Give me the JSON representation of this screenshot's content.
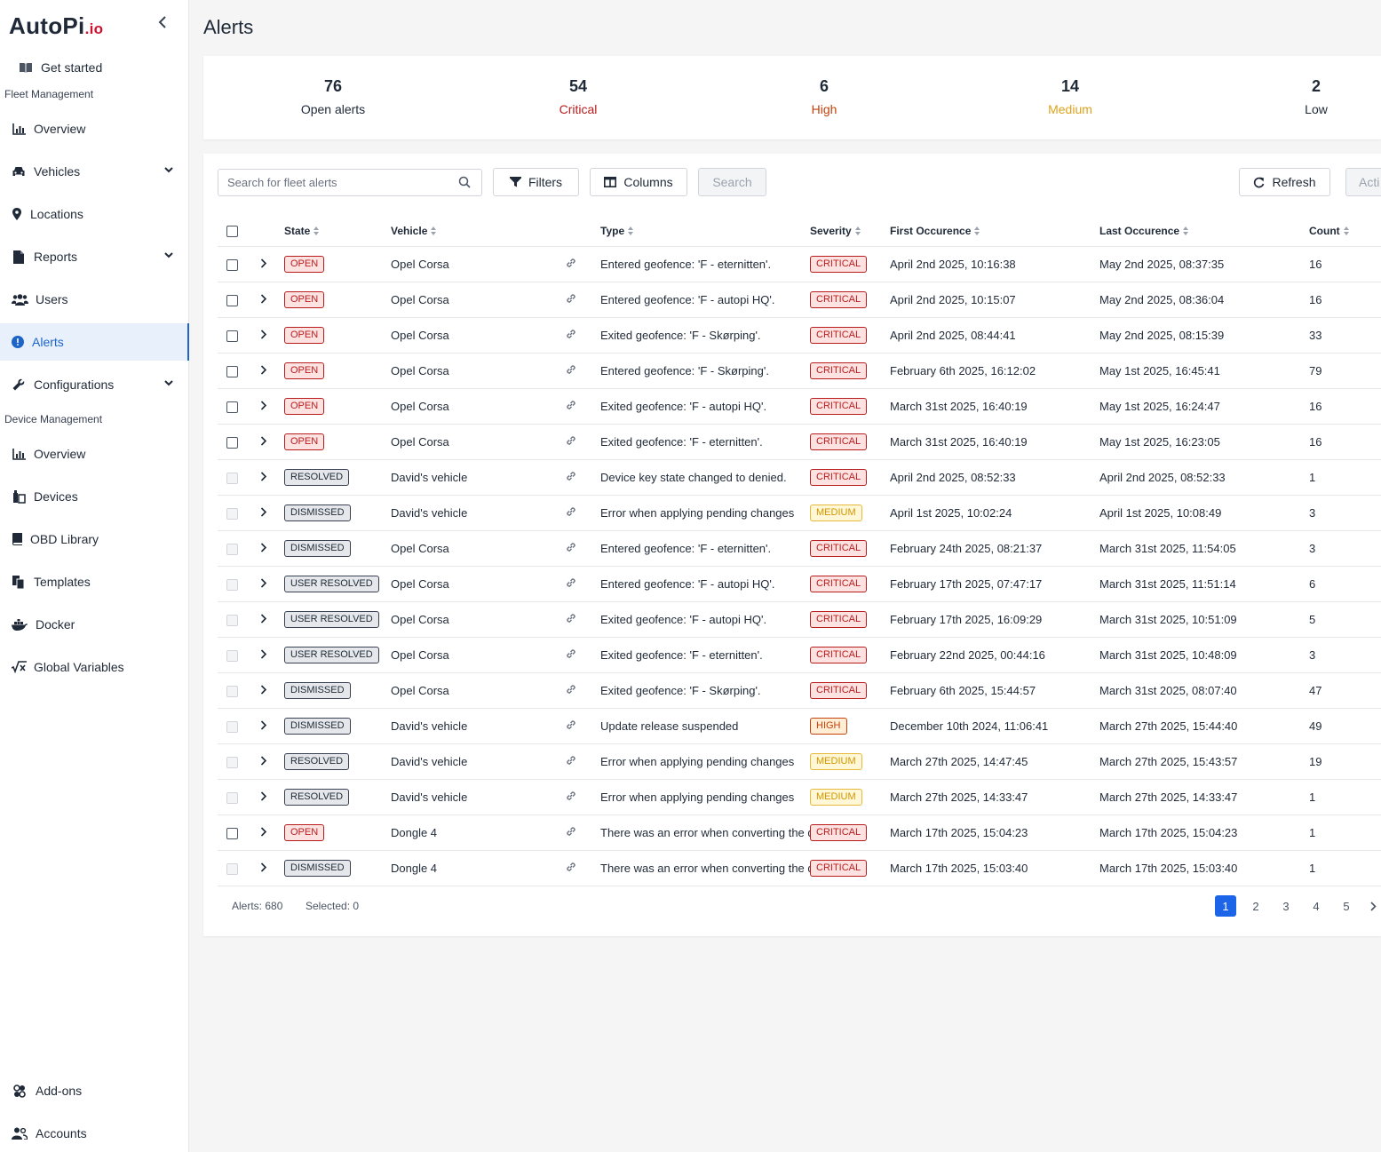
{
  "sidebar": {
    "logo": "AutoPi",
    "logo_suffix": ".io",
    "get_started": "Get started",
    "fleet_label": "Fleet Management",
    "device_label": "Device Management",
    "items": {
      "overview": "Overview",
      "vehicles": "Vehicles",
      "locations": "Locations",
      "reports": "Reports",
      "users": "Users",
      "alerts": "Alerts",
      "configurations": "Configurations",
      "dev_overview": "Overview",
      "devices": "Devices",
      "obd": "OBD Library",
      "templates": "Templates",
      "docker": "Docker",
      "global_vars": "Global Variables",
      "addons": "Add-ons",
      "accounts": "Accounts"
    }
  },
  "page": {
    "title": "Alerts"
  },
  "stats": [
    {
      "value": "76",
      "label": "Open alerts",
      "color": "#1f2937"
    },
    {
      "value": "54",
      "label": "Critical",
      "color": "#b91c1c"
    },
    {
      "value": "6",
      "label": "High",
      "color": "#c2410c"
    },
    {
      "value": "14",
      "label": "Medium",
      "color": "#e0a21b"
    },
    {
      "value": "2",
      "label": "Low",
      "color": "#1f2937"
    }
  ],
  "toolbar": {
    "search_placeholder": "Search for fleet alerts",
    "filters": "Filters",
    "columns": "Columns",
    "search": "Search",
    "refresh": "Refresh",
    "actions": "Acti"
  },
  "table": {
    "headers": {
      "state": "State",
      "vehicle": "Vehicle",
      "type": "Type",
      "severity": "Severity",
      "first": "First Occurence",
      "last": "Last Occurence",
      "count": "Count"
    },
    "rows": [
      {
        "state": "OPEN",
        "vehicle": "Opel Corsa",
        "type": "Entered geofence: 'F - eternitten'.",
        "severity": "CRITICAL",
        "first": "April 2nd 2025, 10:16:38",
        "last": "May 2nd 2025, 08:37:35",
        "count": "16"
      },
      {
        "state": "OPEN",
        "vehicle": "Opel Corsa",
        "type": "Entered geofence: 'F - autopi HQ'.",
        "severity": "CRITICAL",
        "first": "April 2nd 2025, 10:15:07",
        "last": "May 2nd 2025, 08:36:04",
        "count": "16"
      },
      {
        "state": "OPEN",
        "vehicle": "Opel Corsa",
        "type": "Exited geofence: 'F - Skørping'.",
        "severity": "CRITICAL",
        "first": "April 2nd 2025, 08:44:41",
        "last": "May 2nd 2025, 08:15:39",
        "count": "33"
      },
      {
        "state": "OPEN",
        "vehicle": "Opel Corsa",
        "type": "Entered geofence: 'F - Skørping'.",
        "severity": "CRITICAL",
        "first": "February 6th 2025, 16:12:02",
        "last": "May 1st 2025, 16:45:41",
        "count": "79"
      },
      {
        "state": "OPEN",
        "vehicle": "Opel Corsa",
        "type": "Exited geofence: 'F - autopi HQ'.",
        "severity": "CRITICAL",
        "first": "March 31st 2025, 16:40:19",
        "last": "May 1st 2025, 16:24:47",
        "count": "16"
      },
      {
        "state": "OPEN",
        "vehicle": "Opel Corsa",
        "type": "Exited geofence: 'F - eternitten'.",
        "severity": "CRITICAL",
        "first": "March 31st 2025, 16:40:19",
        "last": "May 1st 2025, 16:23:05",
        "count": "16"
      },
      {
        "state": "RESOLVED",
        "vehicle": "David's vehicle",
        "type": "Device key state changed to denied.",
        "severity": "CRITICAL",
        "first": "April 2nd 2025, 08:52:33",
        "last": "April 2nd 2025, 08:52:33",
        "count": "1"
      },
      {
        "state": "DISMISSED",
        "vehicle": "David's vehicle",
        "type": "Error when applying pending changes",
        "severity": "MEDIUM",
        "first": "April 1st 2025, 10:02:24",
        "last": "April 1st 2025, 10:08:49",
        "count": "3"
      },
      {
        "state": "DISMISSED",
        "vehicle": "Opel Corsa",
        "type": "Entered geofence: 'F - eternitten'.",
        "severity": "CRITICAL",
        "first": "February 24th 2025, 08:21:37",
        "last": "March 31st 2025, 11:54:05",
        "count": "3"
      },
      {
        "state": "USER RESOLVED",
        "vehicle": "Opel Corsa",
        "type": "Entered geofence: 'F - autopi HQ'.",
        "severity": "CRITICAL",
        "first": "February 17th 2025, 07:47:17",
        "last": "March 31st 2025, 11:51:14",
        "count": "6"
      },
      {
        "state": "USER RESOLVED",
        "vehicle": "Opel Corsa",
        "type": "Exited geofence: 'F - autopi HQ'.",
        "severity": "CRITICAL",
        "first": "February 17th 2025, 16:09:29",
        "last": "March 31st 2025, 10:51:09",
        "count": "5"
      },
      {
        "state": "USER RESOLVED",
        "vehicle": "Opel Corsa",
        "type": "Exited geofence: 'F - eternitten'.",
        "severity": "CRITICAL",
        "first": "February 22nd 2025, 00:44:16",
        "last": "March 31st 2025, 10:48:09",
        "count": "3"
      },
      {
        "state": "DISMISSED",
        "vehicle": "Opel Corsa",
        "type": "Exited geofence: 'F - Skørping'.",
        "severity": "CRITICAL",
        "first": "February 6th 2025, 15:44:57",
        "last": "March 31st 2025, 08:07:40",
        "count": "47"
      },
      {
        "state": "DISMISSED",
        "vehicle": "David's vehicle",
        "type": "Update release suspended",
        "severity": "HIGH",
        "first": "December 10th 2024, 11:06:41",
        "last": "March 27th 2025, 15:44:40",
        "count": "49"
      },
      {
        "state": "RESOLVED",
        "vehicle": "David's vehicle",
        "type": "Error when applying pending changes",
        "severity": "MEDIUM",
        "first": "March 27th 2025, 14:47:45",
        "last": "March 27th 2025, 15:43:57",
        "count": "19"
      },
      {
        "state": "RESOLVED",
        "vehicle": "David's vehicle",
        "type": "Error when applying pending changes",
        "severity": "MEDIUM",
        "first": "March 27th 2025, 14:33:47",
        "last": "March 27th 2025, 14:33:47",
        "count": "1"
      },
      {
        "state": "OPEN",
        "vehicle": "Dongle 4",
        "type": "There was an error when converting the da",
        "severity": "CRITICAL",
        "first": "March 17th 2025, 15:04:23",
        "last": "March 17th 2025, 15:04:23",
        "count": "1"
      },
      {
        "state": "DISMISSED",
        "vehicle": "Dongle 4",
        "type": "There was an error when converting the da",
        "severity": "CRITICAL",
        "first": "March 17th 2025, 15:03:40",
        "last": "March 17th 2025, 15:03:40",
        "count": "1"
      }
    ]
  },
  "footer": {
    "alerts_count": "Alerts: 680",
    "selected": "Selected: 0",
    "pages": [
      "1",
      "2",
      "3",
      "4",
      "5"
    ],
    "current_page": "1"
  }
}
